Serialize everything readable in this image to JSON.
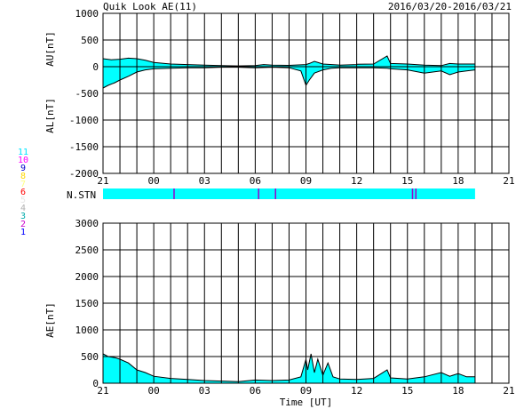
{
  "header": {
    "title": "Quik Look AE(11)",
    "date_range": "2016/03/20-2016/03/21"
  },
  "panels": {
    "top": {
      "ylabel_upper": "AU[nT]",
      "ylabel_lower": "AL[nT]"
    },
    "stn": {
      "label": "N.STN"
    },
    "bottom": {
      "ylabel": "AE[nT]",
      "xlabel": "Time [UT]"
    }
  },
  "station_legend": [
    {
      "n": "11",
      "color": "#00e5ff"
    },
    {
      "n": "10",
      "color": "#ff00ff"
    },
    {
      "n": "9",
      "color": "#0000cc"
    },
    {
      "n": "8",
      "color": "#ffd700"
    },
    {
      "n": "7",
      "color": "#ffff80"
    },
    {
      "n": "6",
      "color": "#ff0000"
    },
    {
      "n": "5",
      "color": "#e6e6e6"
    },
    {
      "n": "4",
      "color": "#b0b0b0"
    },
    {
      "n": "3",
      "color": "#00aaaa"
    },
    {
      "n": "2",
      "color": "#cc00cc"
    },
    {
      "n": "1",
      "color": "#0000ff"
    }
  ],
  "colors": {
    "fill": "#00ffff",
    "line": "#000000",
    "grid": "#000000",
    "stn_bar": "#00ffff",
    "stn_mark": "#9900cc"
  },
  "chart_data": [
    {
      "type": "area",
      "name": "AU/AL",
      "ylim": [
        -2000,
        1000
      ],
      "yticks": [
        1000,
        500,
        0,
        -500,
        -1000,
        -1500,
        -2000
      ],
      "xticks": [
        "21",
        "00",
        "03",
        "06",
        "09",
        "12",
        "15",
        "18",
        "21"
      ],
      "x_hours_start": 21,
      "x_hours_end": 45,
      "data_end_hour": 43.0,
      "series": [
        {
          "name": "AU",
          "x": [
            21,
            21.5,
            22,
            22.5,
            23,
            23.5,
            24,
            25,
            26,
            27,
            28,
            29,
            30,
            30.5,
            31,
            32,
            33,
            33.2,
            33.5,
            34,
            35,
            36,
            36,
            37,
            37.8,
            38,
            39,
            40,
            41,
            41.5,
            42,
            43
          ],
          "values": [
            150,
            130,
            140,
            160,
            150,
            120,
            80,
            50,
            40,
            30,
            20,
            15,
            20,
            40,
            30,
            25,
            40,
            60,
            100,
            50,
            30,
            40,
            45,
            50,
            200,
            60,
            50,
            30,
            20,
            60,
            50,
            50
          ]
        },
        {
          "name": "AL",
          "x": [
            21,
            21.3,
            21.7,
            22,
            22.5,
            23,
            23.5,
            24,
            25,
            26,
            27,
            28,
            29,
            30,
            31,
            32,
            32.7,
            33,
            33.2,
            33.5,
            34,
            34.5,
            35,
            36,
            37,
            37.8,
            38,
            39,
            40,
            41,
            41.5,
            42,
            42.5,
            43
          ],
          "values": [
            -400,
            -350,
            -300,
            -250,
            -180,
            -100,
            -60,
            -40,
            -30,
            -20,
            -20,
            -10,
            -10,
            -20,
            -10,
            -20,
            -80,
            -350,
            -250,
            -120,
            -60,
            -30,
            -20,
            -20,
            -20,
            -30,
            -40,
            -60,
            -120,
            -80,
            -150,
            -100,
            -80,
            -60
          ]
        }
      ]
    },
    {
      "type": "area",
      "name": "AE",
      "ylim": [
        0,
        3000
      ],
      "yticks": [
        3000,
        2500,
        2000,
        1500,
        1000,
        500,
        0
      ],
      "xticks": [
        "21",
        "00",
        "03",
        "06",
        "09",
        "12",
        "15",
        "18",
        "21"
      ],
      "x_hours_start": 21,
      "x_hours_end": 45,
      "data_end_hour": 43.0,
      "series": [
        {
          "name": "AE",
          "x": [
            21,
            21.3,
            21.7,
            22,
            22.5,
            23,
            23.5,
            24,
            25,
            26,
            27,
            28,
            29,
            30,
            31,
            32,
            32.7,
            33,
            33.1,
            33.3,
            33.5,
            33.7,
            34,
            34.3,
            34.6,
            35,
            36,
            37,
            37.8,
            38,
            39,
            40,
            41,
            41.5,
            42,
            42.5,
            43
          ],
          "values": [
            550,
            500,
            480,
            450,
            380,
            250,
            200,
            130,
            90,
            70,
            50,
            40,
            30,
            60,
            50,
            60,
            120,
            450,
            250,
            550,
            200,
            450,
            150,
            380,
            120,
            80,
            70,
            90,
            250,
            100,
            80,
            120,
            200,
            130,
            180,
            120,
            120
          ]
        }
      ]
    }
  ],
  "stn_marks_hours": [
    25.2,
    30.2,
    31.2,
    39.3,
    39.5
  ]
}
